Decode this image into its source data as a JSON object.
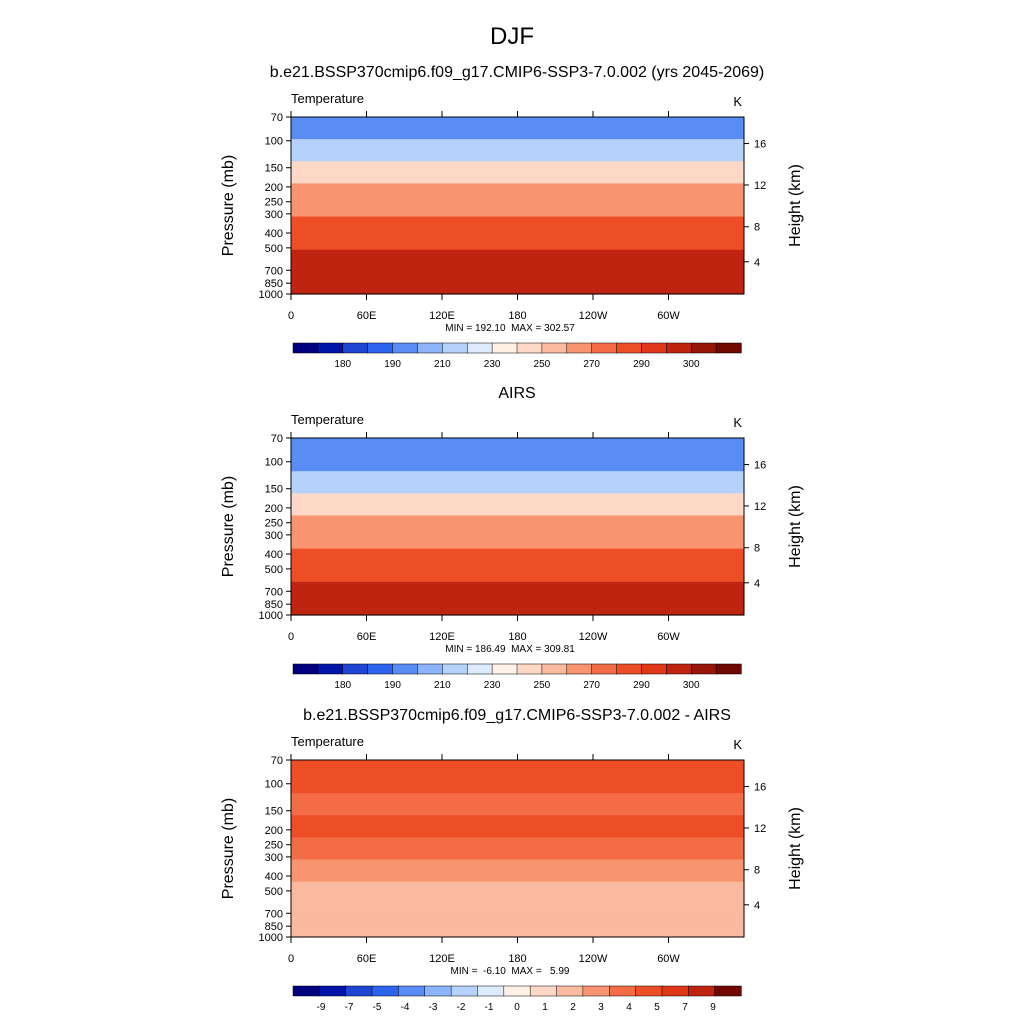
{
  "figure_title": "DJF",
  "chart_data": [
    {
      "type": "heatmap",
      "title": "b.e21.BSSP370cmip6.f09_g17.CMIP6-SSP3-7.0.002 (yrs 2045-2069)",
      "variable": "Temperature",
      "units": "K",
      "ylabel": "Pressure (mb)",
      "y2label": "Height (km)",
      "x_ticks": [
        "0",
        "60E",
        "120E",
        "180",
        "120W",
        "60W"
      ],
      "y_ticks": [
        "70",
        "100",
        "150",
        "200",
        "250",
        "300",
        "400",
        "500",
        "700",
        "850",
        "1000"
      ],
      "y2_ticks": [
        "16",
        "12",
        "8",
        "4"
      ],
      "stats": "MIN = 192.10  MAX = 302.57",
      "min": 192.1,
      "max": 302.57,
      "colorbar_labels": [
        "180",
        "190",
        "210",
        "230",
        "250",
        "270",
        "290",
        "300"
      ],
      "colors": [
        "#00007f",
        "#0014a8",
        "#1e46d2",
        "#2d64ee",
        "#5a8cf6",
        "#8cb4fa",
        "#b4d2fc",
        "#dcebfe",
        "#fff1e6",
        "#fdd8c6",
        "#fbb9a0",
        "#f89470",
        "#f46c46",
        "#ee4e26",
        "#e03718",
        "#be2410",
        "#961508",
        "#700800"
      ],
      "profile": [
        199.5,
        209.5,
        219.5,
        229.5,
        239.5,
        244.5,
        252.5,
        259.5,
        266.5,
        272.5,
        279.5,
        285.5,
        290.5,
        293.5,
        296.5,
        298.5
      ]
    },
    {
      "type": "heatmap",
      "title": "AIRS",
      "variable": "Temperature",
      "units": "K",
      "ylabel": "Pressure (mb)",
      "y2label": "Height (km)",
      "x_ticks": [
        "0",
        "60E",
        "120E",
        "180",
        "120W",
        "60W"
      ],
      "y_ticks": [
        "70",
        "100",
        "150",
        "200",
        "250",
        "300",
        "400",
        "500",
        "700",
        "850",
        "1000"
      ],
      "y2_ticks": [
        "16",
        "12",
        "8",
        "4"
      ],
      "stats": "MIN = 186.49  MAX = 309.81",
      "min": 186.49,
      "max": 309.81,
      "colorbar_labels": [
        "180",
        "190",
        "210",
        "230",
        "250",
        "270",
        "290",
        "300"
      ],
      "colors": [
        "#00007f",
        "#0014a8",
        "#1e46d2",
        "#2d64ee",
        "#5a8cf6",
        "#8cb4fa",
        "#b4d2fc",
        "#dcebfe",
        "#fff1e6",
        "#fdd8c6",
        "#fbb9a0",
        "#f89470",
        "#f46c46",
        "#ee4e26",
        "#e03718",
        "#be2410",
        "#961508",
        "#700800"
      ],
      "profile": [
        199.5,
        199.5,
        209.5,
        219.5,
        229.5,
        239.5,
        244.5,
        252.5,
        259.5,
        266.5,
        272.5,
        279.5,
        285.5,
        290.5,
        294.5,
        298.5
      ]
    },
    {
      "type": "heatmap",
      "title": "b.e21.BSSP370cmip6.f09_g17.CMIP6-SSP3-7.0.002 - AIRS",
      "variable": "Temperature",
      "units": "K",
      "ylabel": "Pressure (mb)",
      "y2label": "Height (km)",
      "x_ticks": [
        "0",
        "60E",
        "120E",
        "180",
        "120W",
        "60W"
      ],
      "y_ticks": [
        "70",
        "100",
        "150",
        "200",
        "250",
        "300",
        "400",
        "500",
        "700",
        "850",
        "1000"
      ],
      "y2_ticks": [
        "16",
        "12",
        "8",
        "4"
      ],
      "stats": "MIN =  -6.10  MAX =   5.99",
      "min": -6.1,
      "max": 5.99,
      "colorbar_labels": [
        "-9",
        "-7",
        "-5",
        "-4",
        "-3",
        "-2",
        "-1",
        "0",
        "1",
        "2",
        "3",
        "4",
        "5",
        "7",
        "9"
      ],
      "colors": [
        "#00007f",
        "#0014a8",
        "#1e46d2",
        "#2d64ee",
        "#5a8cf6",
        "#8cb4fa",
        "#b4d2fc",
        "#dcebfe",
        "#fff1e6",
        "#fdd8c6",
        "#fbb9a0",
        "#f89470",
        "#f46c46",
        "#ee4e26",
        "#e03718",
        "#be2410",
        "#700800"
      ],
      "profile": [
        4.5,
        4.5,
        4.5,
        3.5,
        3.5,
        4.5,
        4.5,
        3.5,
        3.5,
        2.5,
        2.5,
        1.5,
        1.5,
        1.5,
        1.5,
        1.5
      ]
    }
  ]
}
